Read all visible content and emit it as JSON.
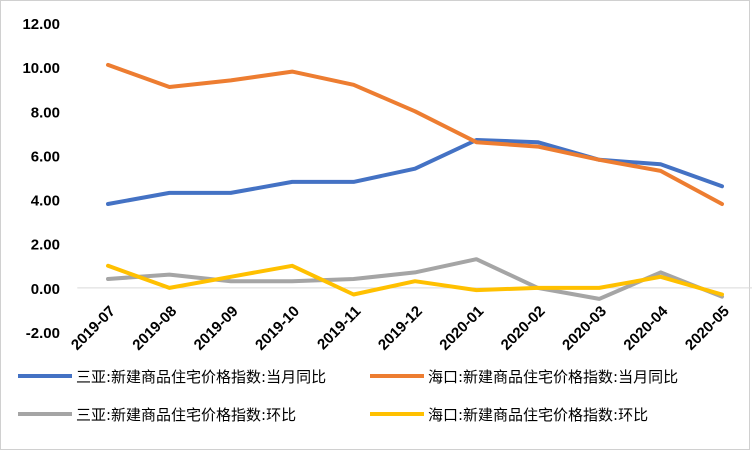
{
  "chart_data": {
    "type": "line",
    "title": "",
    "xlabel": "",
    "ylabel": "",
    "categories": [
      "2019-07",
      "2019-08",
      "2019-09",
      "2019-10",
      "2019-11",
      "2019-12",
      "2020-01",
      "2020-02",
      "2020-03",
      "2020-04",
      "2020-05"
    ],
    "ylim": [
      -2.0,
      12.0
    ],
    "yticks": [
      "-2.00",
      "0.00",
      "2.00",
      "4.00",
      "6.00",
      "8.00",
      "10.00",
      "12.00"
    ],
    "grid": false,
    "legend_position": "bottom",
    "series": [
      {
        "name": "三亚:新建商品住宅价格指数:当月同比",
        "color": "#4472C4",
        "values": [
          3.8,
          4.3,
          4.3,
          4.8,
          4.8,
          5.4,
          6.7,
          6.6,
          5.8,
          5.6,
          4.6
        ]
      },
      {
        "name": "海口:新建商品住宅价格指数:当月同比",
        "color": "#ED7D31",
        "values": [
          10.1,
          9.1,
          9.4,
          9.8,
          9.2,
          8.0,
          6.6,
          6.4,
          5.8,
          5.3,
          3.8
        ]
      },
      {
        "name": "三亚:新建商品住宅价格指数:环比",
        "color": "#A5A5A5",
        "values": [
          0.4,
          0.6,
          0.3,
          0.3,
          0.4,
          0.7,
          1.3,
          0.0,
          -0.5,
          0.7,
          -0.4
        ]
      },
      {
        "name": "海口:新建商品住宅价格指数:环比",
        "color": "#FFC000",
        "values": [
          1.0,
          0.0,
          0.5,
          1.0,
          -0.3,
          0.3,
          -0.1,
          0.0,
          0.0,
          0.5,
          -0.3
        ]
      }
    ]
  }
}
